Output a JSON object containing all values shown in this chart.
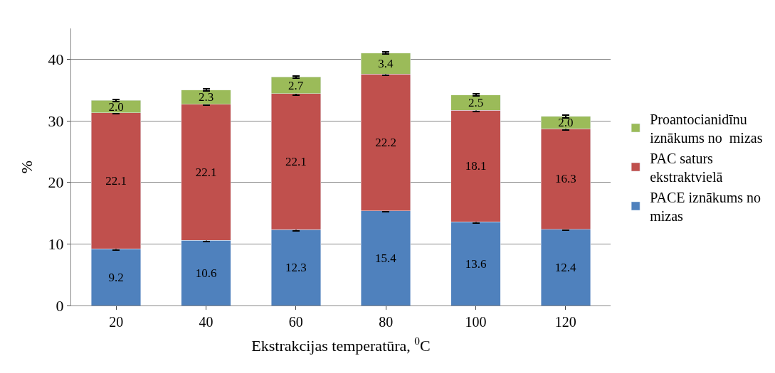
{
  "chart_data": {
    "type": "bar",
    "stacked": true,
    "xlabel": "Ekstrakcijas temperatūra, $^{0}$C",
    "ylabel": "%",
    "categories": [
      "20",
      "40",
      "60",
      "80",
      "100",
      "120"
    ],
    "series": [
      {
        "name": "PACE iznākums no mizas",
        "color": "#4f81bd",
        "values": [
          9.2,
          10.6,
          12.3,
          15.4,
          13.6,
          12.4
        ],
        "value_labels": [
          "9.2",
          "10.6",
          "12.3",
          "15.4",
          "13.6",
          "12.4"
        ],
        "errors": [
          0.2,
          0.2,
          0.2,
          0.2,
          0.2,
          0.2
        ]
      },
      {
        "name": "PAC saturs ekstraktvielā",
        "color": "#c0504d",
        "values": [
          22.1,
          22.1,
          22.1,
          22.2,
          18.1,
          16.3
        ],
        "value_labels": [
          "22.1",
          "22.1",
          "22.1",
          "22.2",
          "18.1",
          "16.3"
        ],
        "errors": [
          0.2,
          0.2,
          0.2,
          0.2,
          0.2,
          0.2
        ]
      },
      {
        "name": "Proantocianidīnu iznākums no  mizas",
        "color": "#9bbb59",
        "values": [
          2.0,
          2.3,
          2.7,
          3.4,
          2.5,
          2.0
        ],
        "value_labels": [
          "2.0",
          "2.3",
          "2.7",
          "3.4",
          "2.5",
          "2.0"
        ],
        "errors": [
          0.2,
          0.2,
          0.2,
          0.2,
          0.2,
          0.2
        ]
      }
    ],
    "ylim": [
      0,
      45
    ],
    "yticks": [
      0,
      10,
      20,
      30,
      40
    ],
    "grid": "y",
    "legend": "right"
  }
}
